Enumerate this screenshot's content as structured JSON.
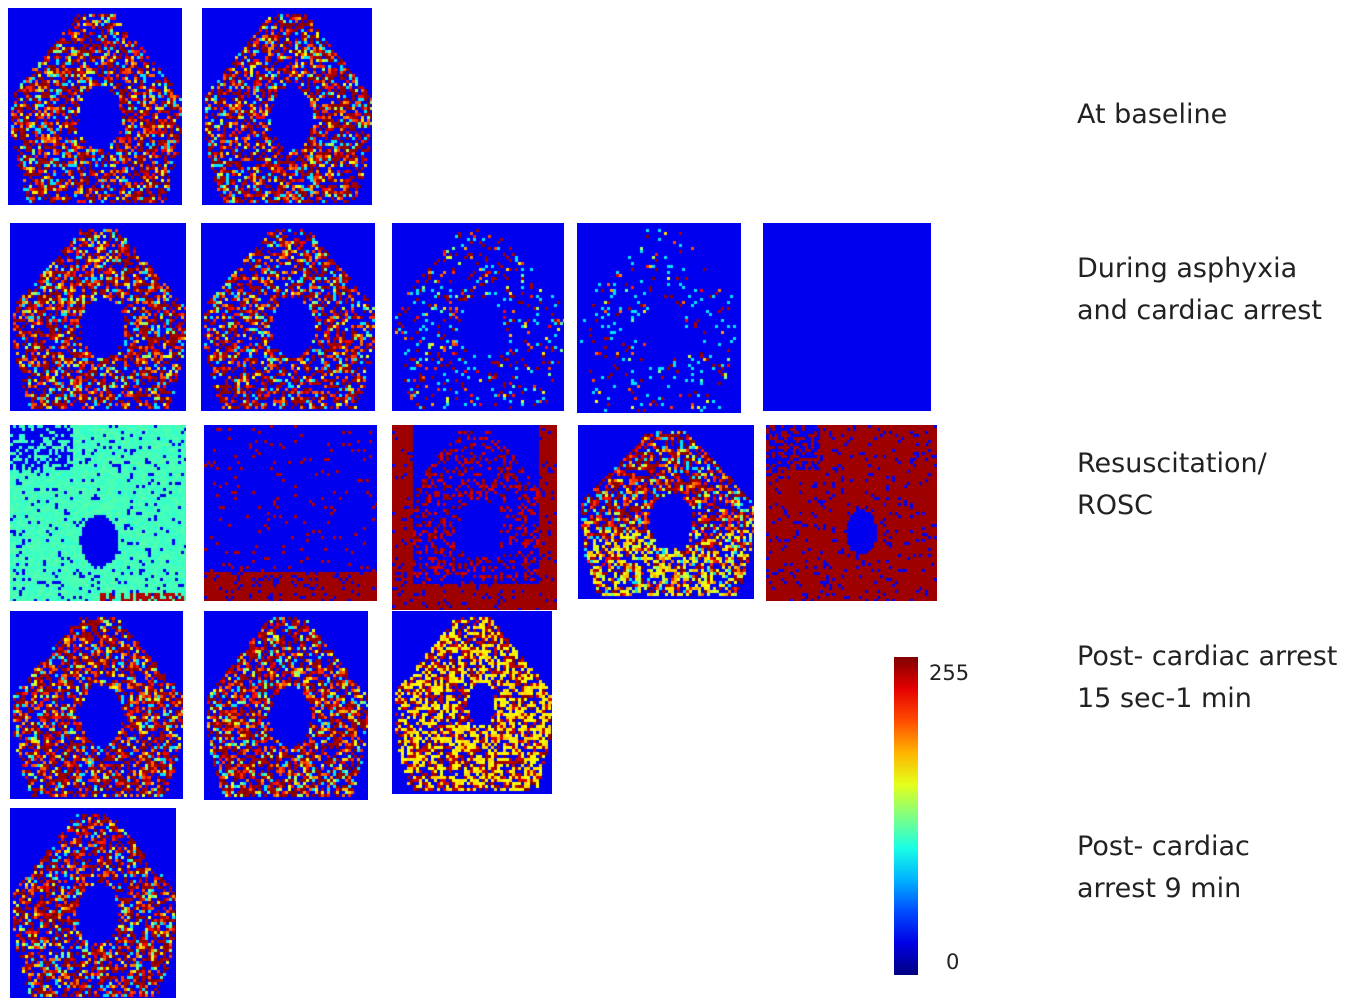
{
  "figure": {
    "rows": [
      {
        "label_lines": [
          "At baseline"
        ],
        "panels": [
          {
            "pattern": "speckle",
            "density": 0.55
          },
          {
            "pattern": "speckle",
            "density": 0.55
          }
        ]
      },
      {
        "label_lines": [
          "During asphyxia",
          "and cardiac arrest"
        ],
        "panels": [
          {
            "pattern": "speckle",
            "density": 0.55
          },
          {
            "pattern": "speckle",
            "density": 0.5
          },
          {
            "pattern": "speckle",
            "density": 0.12
          },
          {
            "pattern": "speckle",
            "density": 0.05
          },
          {
            "pattern": "blank",
            "density": 0.0
          }
        ]
      },
      {
        "label_lines": [
          "Resuscitation/",
          "ROSC"
        ],
        "panels": [
          {
            "pattern": "flood-cyan",
            "density": 0.9
          },
          {
            "pattern": "sparse-red-base",
            "density": 0.05
          },
          {
            "pattern": "red-rim",
            "density": 0.35
          },
          {
            "pattern": "speckle-green-base",
            "density": 0.6
          },
          {
            "pattern": "flood-red",
            "density": 0.9
          }
        ]
      },
      {
        "label_lines": [
          "Post- cardiac arrest",
          "15 sec-1 min"
        ],
        "panels": [
          {
            "pattern": "speckle",
            "density": 0.6
          },
          {
            "pattern": "speckle",
            "density": 0.6
          },
          {
            "pattern": "green-shield",
            "density": 0.7
          }
        ]
      },
      {
        "label_lines": [
          "Post- cardiac",
          "arrest 9 min"
        ],
        "panels": [
          {
            "pattern": "speckle",
            "density": 0.55
          }
        ]
      }
    ],
    "colorbar": {
      "max_label": "255",
      "min_label": "0",
      "colormap": "jet"
    },
    "colors": {
      "background_blue": "#0000ee",
      "red": "#ff1a00",
      "cyan": "#2ef2c0"
    }
  }
}
